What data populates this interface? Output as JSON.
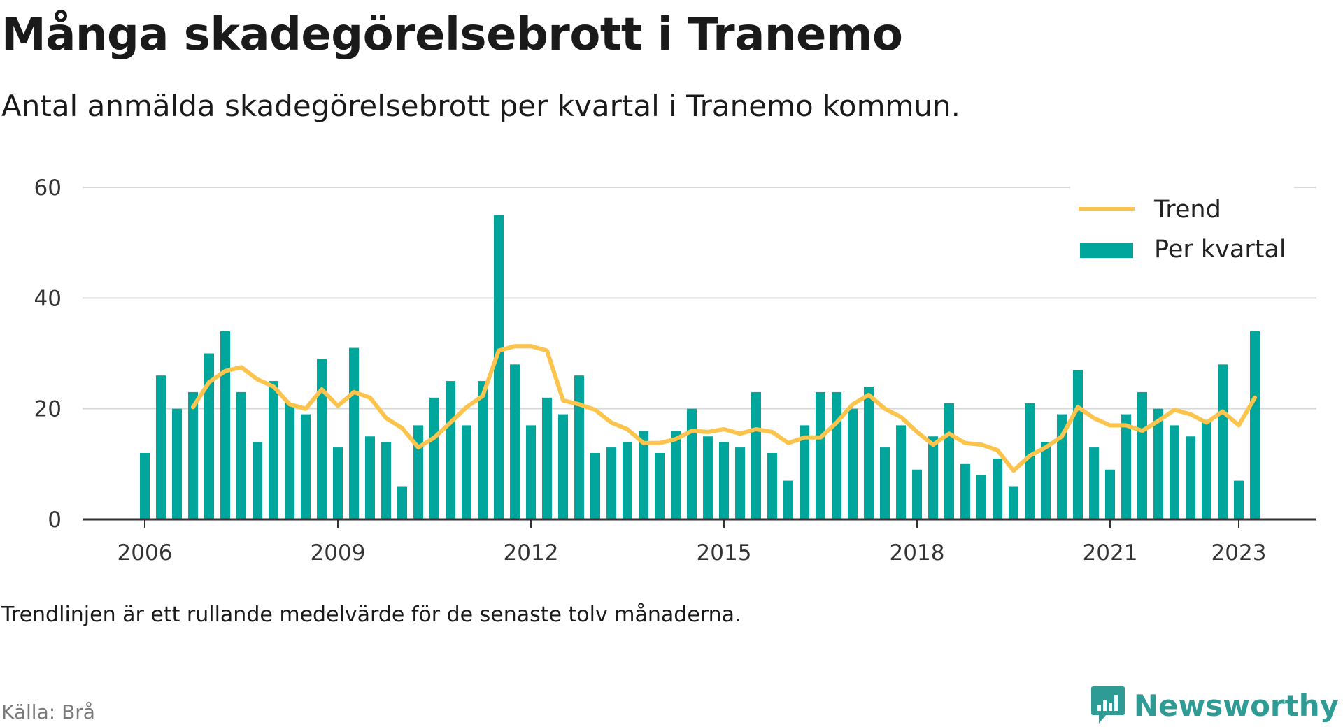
{
  "header": {
    "title": "Många skadegörelsebrott i Tranemo",
    "subtitle": "Antal anmälda skadegörelsebrott per kvartal i Tranemo kommun."
  },
  "footer": {
    "note": "Trendlinjen är ett rullande medelvärde för de senaste tolv månaderna.",
    "source": "Källa: Brå",
    "brand": "Newsworthy"
  },
  "colors": {
    "bar": "#00a59b",
    "trend": "#fcc44c",
    "grid": "#d9d9d9",
    "axis": "#333333",
    "brand": "#2e9b94"
  },
  "chart_data": {
    "type": "bar",
    "legend": {
      "position": "top-right",
      "trend_label": "Trend",
      "bar_label": "Per kvartal"
    },
    "ylim": [
      0,
      60
    ],
    "y_ticks": [
      0,
      20,
      40,
      60
    ],
    "x_ticks": [
      "2006",
      "2009",
      "2012",
      "2015",
      "2018",
      "2021",
      "2023"
    ],
    "grid": true,
    "categories": [
      "2006Q1",
      "2006Q2",
      "2006Q3",
      "2006Q4",
      "2007Q1",
      "2007Q2",
      "2007Q3",
      "2007Q4",
      "2008Q1",
      "2008Q2",
      "2008Q3",
      "2008Q4",
      "2009Q1",
      "2009Q2",
      "2009Q3",
      "2009Q4",
      "2010Q1",
      "2010Q2",
      "2010Q3",
      "2010Q4",
      "2011Q1",
      "2011Q2",
      "2011Q3",
      "2011Q4",
      "2012Q1",
      "2012Q2",
      "2012Q3",
      "2012Q4",
      "2013Q1",
      "2013Q2",
      "2013Q3",
      "2013Q4",
      "2014Q1",
      "2014Q2",
      "2014Q3",
      "2014Q4",
      "2015Q1",
      "2015Q2",
      "2015Q3",
      "2015Q4",
      "2016Q1",
      "2016Q2",
      "2016Q3",
      "2016Q4",
      "2017Q1",
      "2017Q2",
      "2017Q3",
      "2017Q4",
      "2018Q1",
      "2018Q2",
      "2018Q3",
      "2018Q4",
      "2019Q1",
      "2019Q2",
      "2019Q3",
      "2019Q4",
      "2020Q1",
      "2020Q2",
      "2020Q3",
      "2020Q4",
      "2021Q1",
      "2021Q2",
      "2021Q3",
      "2021Q4",
      "2022Q1",
      "2022Q2",
      "2022Q3",
      "2022Q4",
      "2023Q1",
      "2023Q2"
    ],
    "series": [
      {
        "name": "Per kvartal",
        "type": "bar",
        "values": [
          12,
          26,
          20,
          23,
          30,
          34,
          23,
          14,
          25,
          21,
          19,
          29,
          13,
          31,
          15,
          14,
          6,
          17,
          22,
          25,
          17,
          25,
          55,
          28,
          17,
          22,
          19,
          26,
          12,
          13,
          14,
          16,
          12,
          16,
          20,
          15,
          14,
          13,
          23,
          12,
          7,
          17,
          23,
          23,
          20,
          24,
          13,
          17,
          9,
          15,
          21,
          10,
          8,
          11,
          6,
          21,
          14,
          19,
          27,
          13,
          9,
          19,
          23,
          20,
          17,
          15,
          18,
          28,
          7,
          34
        ]
      },
      {
        "name": "Trend",
        "type": "line",
        "values": [
          null,
          null,
          null,
          20.3,
          24.8,
          26.8,
          27.5,
          25.3,
          24.0,
          20.8,
          20.0,
          23.5,
          20.5,
          23.0,
          22.0,
          18.3,
          16.5,
          13.0,
          14.8,
          17.5,
          20.3,
          22.3,
          30.5,
          31.3,
          31.3,
          30.5,
          21.5,
          20.8,
          19.8,
          17.5,
          16.3,
          13.8,
          13.8,
          14.5,
          16.0,
          15.8,
          16.3,
          15.5,
          16.3,
          15.8,
          13.8,
          14.8,
          14.8,
          17.5,
          20.8,
          22.5,
          20.0,
          18.5,
          15.8,
          13.5,
          15.5,
          13.8,
          13.5,
          12.5,
          8.8,
          11.5,
          13.0,
          15.0,
          20.3,
          18.3,
          17.0,
          17.0,
          16.0,
          17.8,
          19.8,
          19.0,
          17.5,
          19.5,
          17.0,
          22.0
        ]
      }
    ]
  }
}
